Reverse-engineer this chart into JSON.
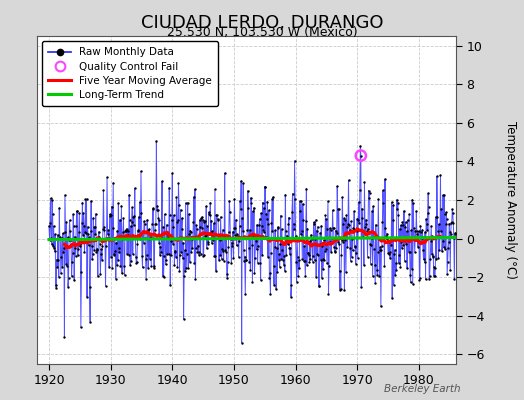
{
  "title": "CIUDAD LERDO, DURANGO",
  "subtitle": "25.530 N, 103.530 W (Mexico)",
  "ylabel": "Temperature Anomaly (°C)",
  "xlim": [
    1918,
    1986
  ],
  "ylim": [
    -6.5,
    10.5
  ],
  "yticks": [
    -6,
    -4,
    -2,
    0,
    2,
    4,
    6,
    8,
    10
  ],
  "xticks": [
    1920,
    1930,
    1940,
    1950,
    1960,
    1970,
    1980
  ],
  "outer_bg": "#d8d8d8",
  "plot_bg": "#ffffff",
  "grid_color": "#cccccc",
  "raw_line_color": "#3333ff",
  "raw_marker_color": "#000000",
  "moving_avg_color": "#ff0000",
  "trend_color": "#00cc00",
  "qc_fail_color": "#ff44ff",
  "watermark": "Berkeley Earth",
  "seed": 42,
  "start_year": 1920,
  "end_year": 1985,
  "months_per_year": 12,
  "noise_std": 1.3
}
